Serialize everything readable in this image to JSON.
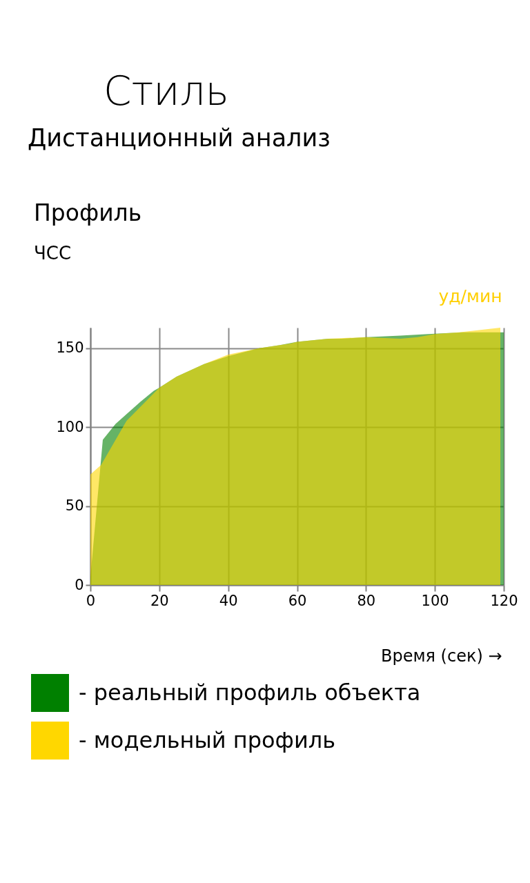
{
  "chart_data": {
    "type": "area",
    "title": "Профиль",
    "subtitle": "ЧСС",
    "xlabel": "Время (сек) →",
    "ylabel": "уд/мин",
    "annotations": [
      "Стиль",
      "Дистанционный анализ"
    ],
    "series": [
      {
        "name": "- реальный профиль объекта",
        "color": "#008000",
        "x": [
          0,
          3.6,
          7.3,
          14.5,
          18.4,
          20,
          25,
          33,
          40,
          49,
          55,
          60,
          69,
          73,
          80,
          90,
          98,
          108,
          120
        ],
        "values": [
          5,
          92,
          102,
          116,
          123,
          125,
          132,
          140,
          145,
          150,
          152,
          154,
          156,
          156,
          157,
          158,
          159,
          160,
          160
        ]
      },
      {
        "name": "- модельный профиль",
        "color": "#ffd700",
        "x": [
          0,
          3.1,
          10.5,
          20,
          25,
          33,
          40,
          49,
          58,
          60,
          69,
          80,
          90,
          95,
          100,
          107,
          119
        ],
        "values": [
          70,
          76,
          104,
          125,
          132,
          140,
          146,
          150,
          153,
          154,
          156,
          157,
          156,
          157,
          159,
          160,
          163
        ]
      }
    ],
    "xlim": [
      0,
      120
    ],
    "xticks": [
      0,
      20,
      40,
      60,
      80,
      100,
      120
    ],
    "ylim": [
      0,
      163
    ],
    "yticks": [
      0,
      50,
      100,
      150
    ],
    "grid": true,
    "legend": "bottom"
  }
}
